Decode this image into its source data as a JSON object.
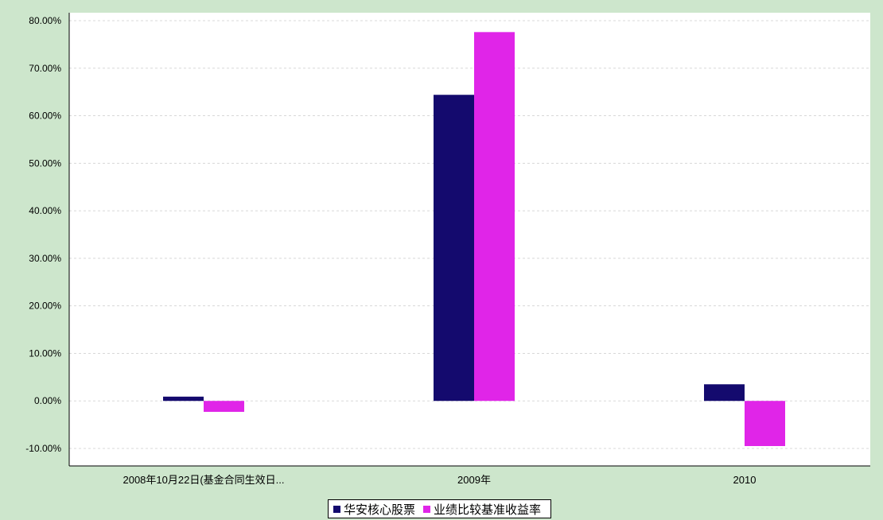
{
  "chart_data": {
    "type": "bar",
    "title": "",
    "xlabel": "",
    "ylabel": "",
    "categories": [
      "2008年10月22日(基金合同生效日...",
      "2009年",
      "2010"
    ],
    "series": [
      {
        "name": "华安核心股票",
        "color": "#140a6e",
        "values": [
          0.9,
          64.4,
          3.5
        ]
      },
      {
        "name": "业绩比较基准收益率",
        "color": "#e025e8",
        "values": [
          -2.3,
          77.6,
          -9.5
        ]
      }
    ],
    "ylim": [
      -10,
      80
    ],
    "yticks": [
      "80.00%",
      "70.00%",
      "60.00%",
      "50.00%",
      "40.00%",
      "30.00%",
      "20.00%",
      "10.00%",
      "0.00%",
      "-10.00%"
    ],
    "ytick_values": [
      80,
      70,
      60,
      50,
      40,
      30,
      20,
      10,
      0,
      -10
    ],
    "grid": true,
    "legend_position": "bottom-center"
  }
}
